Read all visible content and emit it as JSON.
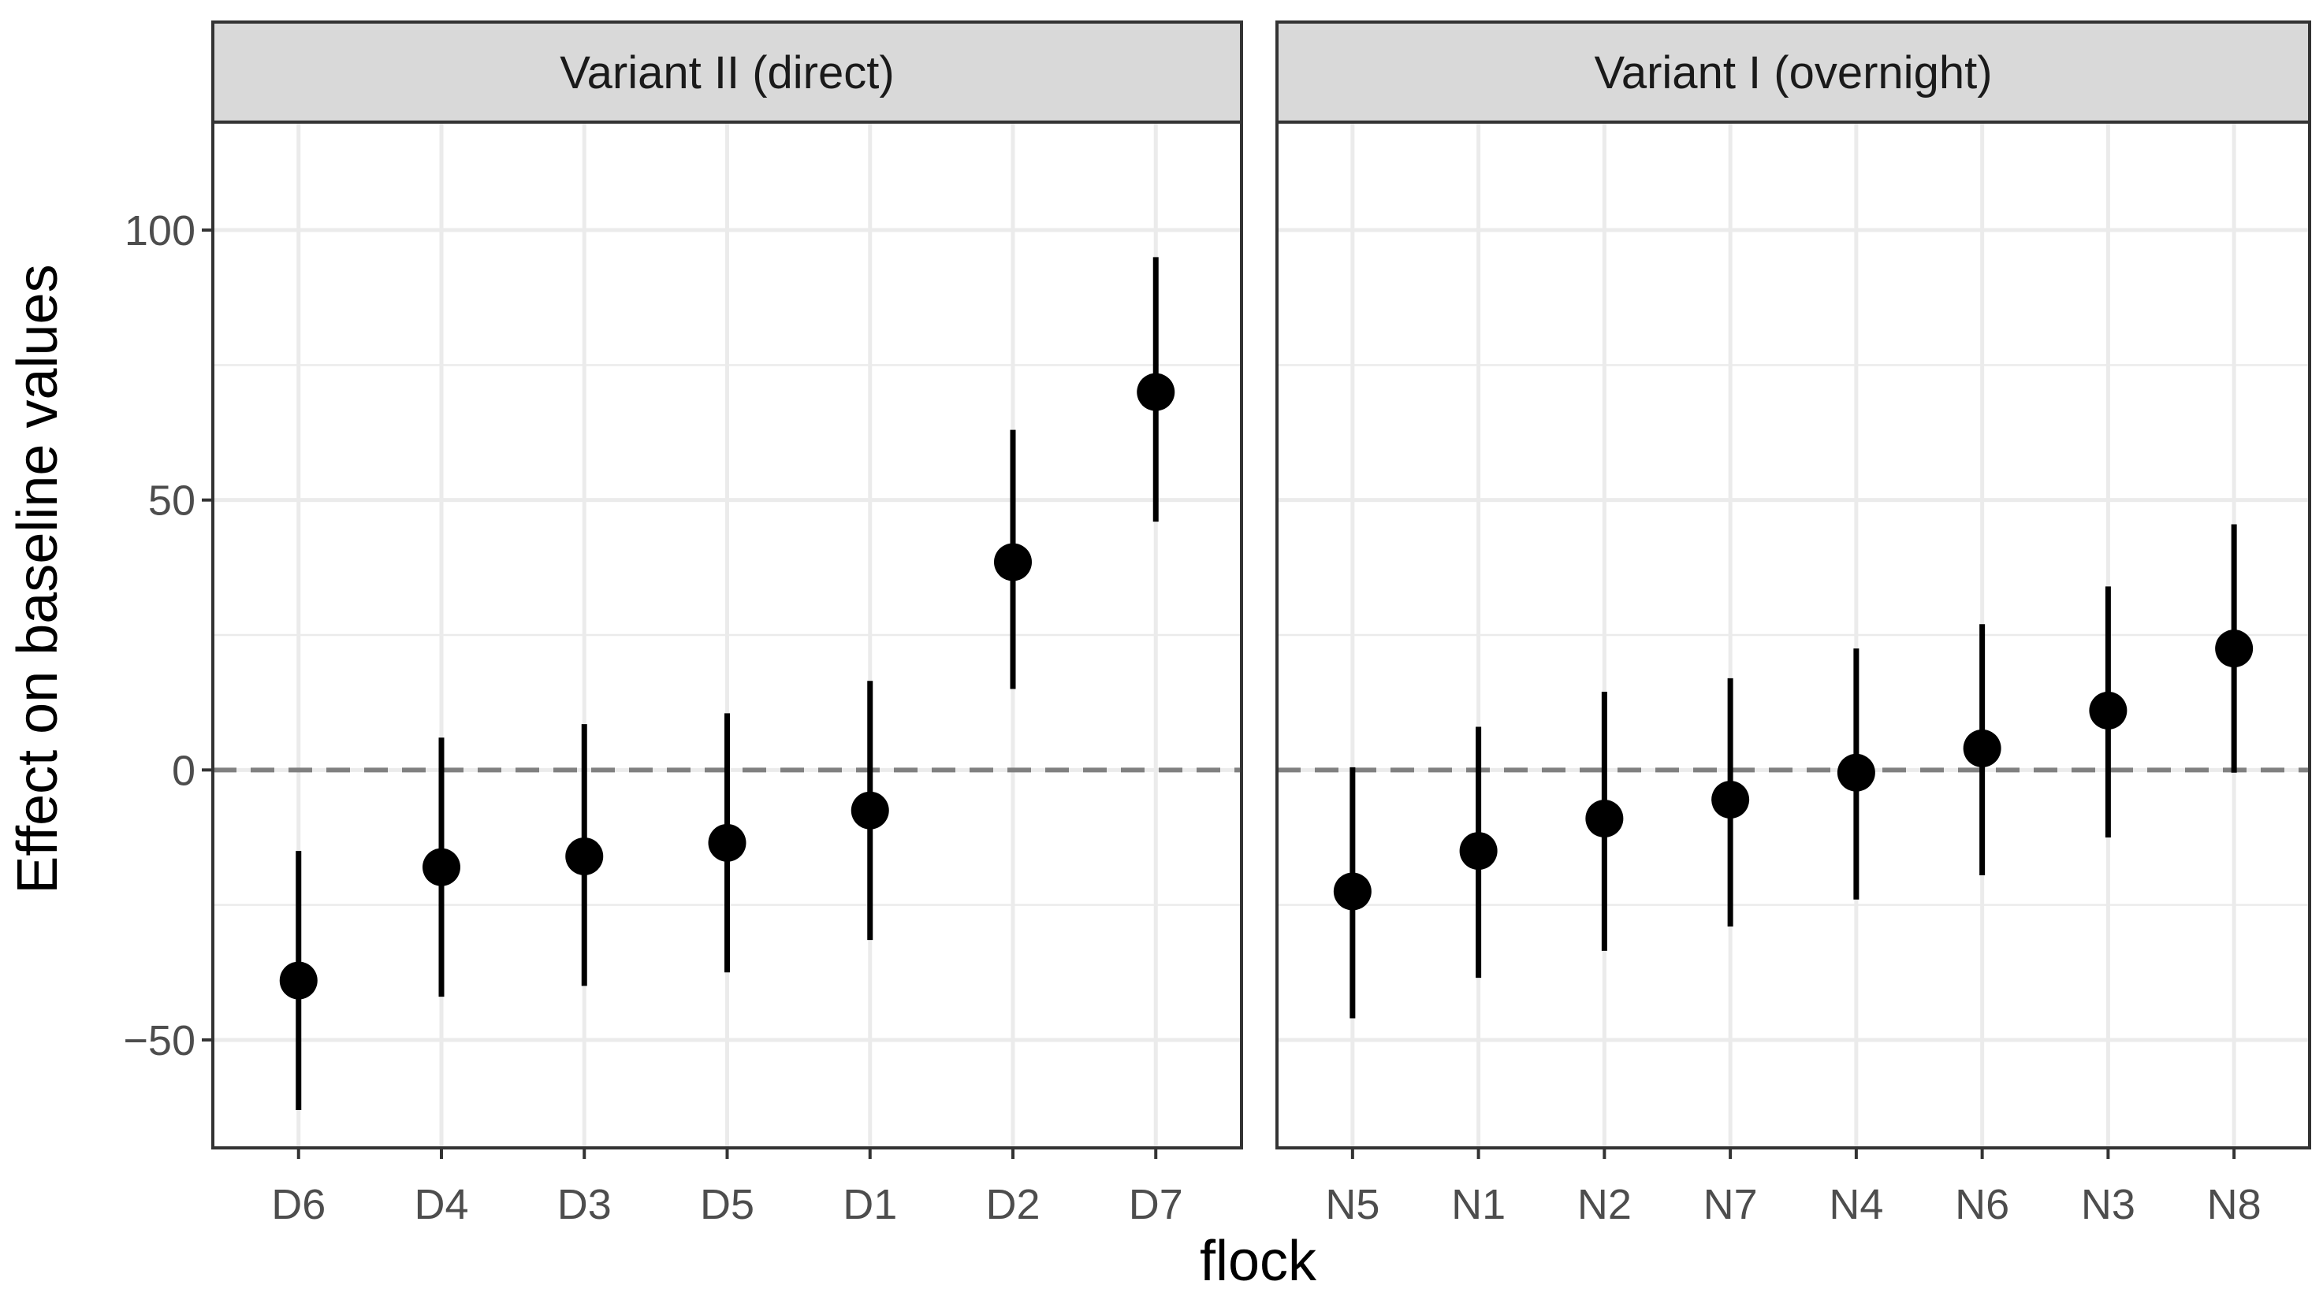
{
  "chart_data": {
    "type": "scatter",
    "subtype": "point-range faceted",
    "xlabel": "flock",
    "ylabel": "Effect on baseline values",
    "ylim": [
      -70,
      120
    ],
    "yticks": [
      -50,
      0,
      50,
      100
    ],
    "ytick_labels": [
      "−50",
      "0",
      "50",
      "100"
    ],
    "reference_line": {
      "y": 0,
      "style": "dashed",
      "color": "#808080"
    },
    "grid": true,
    "theme": "bw",
    "colors": {
      "point": "#000000",
      "strip_fill": "#d9d9d9",
      "grid": "#ebebeb",
      "panel_border": "#333333"
    },
    "panels": [
      {
        "title": "Variant II (direct)",
        "categories": [
          "D6",
          "D4",
          "D3",
          "D5",
          "D1",
          "D2",
          "D7"
        ],
        "estimate": [
          -39,
          -18,
          -16,
          -13.5,
          -7.5,
          38.5,
          70
        ],
        "lower": [
          -63,
          -42,
          -40,
          -37.5,
          -31.5,
          15,
          46
        ],
        "upper": [
          -15,
          6,
          8.5,
          10.5,
          16.5,
          63,
          95
        ]
      },
      {
        "title": "Variant I (overnight)",
        "categories": [
          "N5",
          "N1",
          "N2",
          "N7",
          "N4",
          "N6",
          "N3",
          "N8"
        ],
        "estimate": [
          -22.5,
          -15,
          -9,
          -5.5,
          -0.5,
          4,
          11,
          22.5
        ],
        "lower": [
          -46,
          -38.5,
          -33.5,
          -29,
          -24,
          -19.5,
          -12.5,
          -0.5
        ],
        "upper": [
          0.5,
          8,
          14.5,
          17,
          22.5,
          27,
          34,
          45.5
        ]
      }
    ]
  }
}
